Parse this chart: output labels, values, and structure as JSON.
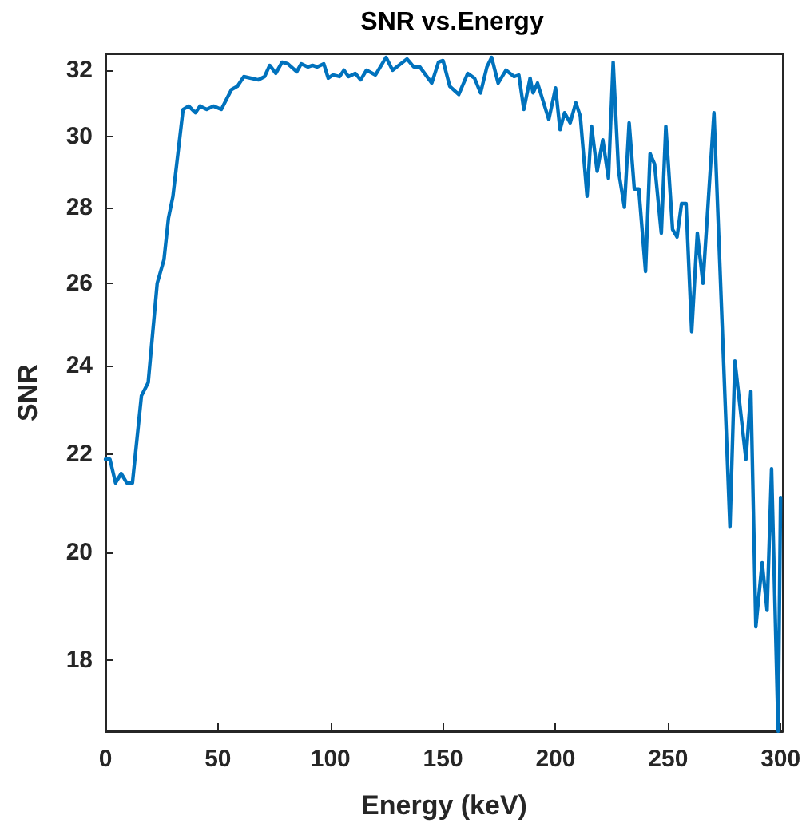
{
  "chart_data": {
    "type": "line",
    "title": "SNR vs.Energy",
    "xlabel": "Energy (keV)",
    "ylabel": "SNR",
    "log": true,
    "x": [
      0,
      2,
      4.5,
      7,
      9.5,
      12,
      16,
      19,
      23,
      26,
      28,
      30,
      34.5,
      37,
      40,
      42,
      45,
      48,
      51.5,
      56,
      58.6,
      61.5,
      68,
      70.7,
      73,
      75.7,
      78.5,
      81,
      85,
      87,
      90,
      92,
      94,
      97,
      99,
      101,
      104,
      106,
      108,
      111,
      113.4,
      116,
      120,
      124.7,
      127.6,
      134,
      137,
      139.7,
      145,
      148,
      150,
      153,
      157,
      161,
      164,
      166.7,
      169.5,
      171.6,
      174.5,
      178,
      181.6,
      183.7,
      185.9,
      188.7,
      190,
      192,
      197,
      200,
      202,
      204,
      206.5,
      209,
      211,
      214,
      216,
      218.5,
      221,
      223.5,
      225.6,
      228,
      230.6,
      232.7,
      235,
      237,
      240,
      242,
      244,
      247,
      249,
      252,
      254,
      256,
      258,
      260.5,
      263,
      265.5,
      270.4,
      277.5,
      279.7,
      284.6,
      286.8,
      289,
      291.8,
      294,
      296,
      298.9,
      300
    ],
    "series": [
      {
        "color": "#0072bd",
        "values": [
          21.9,
          21.9,
          21.4,
          21.6,
          21.4,
          21.4,
          23.3,
          23.6,
          26.0,
          26.6,
          27.7,
          28.3,
          30.8,
          30.9,
          30.7,
          30.9,
          30.8,
          30.9,
          30.8,
          31.4,
          31.5,
          31.8,
          31.7,
          31.8,
          32.15,
          31.9,
          32.25,
          32.2,
          31.95,
          32.2,
          32.1,
          32.15,
          32.1,
          32.2,
          31.75,
          31.85,
          31.8,
          32.0,
          31.8,
          31.9,
          31.7,
          32.0,
          31.85,
          32.4,
          32.0,
          32.35,
          32.1,
          32.1,
          31.6,
          32.25,
          32.3,
          31.5,
          31.25,
          31.9,
          31.75,
          31.3,
          32.1,
          32.4,
          31.6,
          32.0,
          31.8,
          31.85,
          30.8,
          31.75,
          31.3,
          31.6,
          30.5,
          31.45,
          30.2,
          30.7,
          30.4,
          31.0,
          30.6,
          28.3,
          30.3,
          29.0,
          29.9,
          28.8,
          32.25,
          29.0,
          28.0,
          30.4,
          28.5,
          28.5,
          26.3,
          29.5,
          29.2,
          27.3,
          30.3,
          27.4,
          27.2,
          28.1,
          28.1,
          24.8,
          27.3,
          26.0,
          30.7,
          20.5,
          24.1,
          21.9,
          23.4,
          18.6,
          19.8,
          18.9,
          21.7,
          16.8,
          21.1
        ]
      }
    ],
    "xlim": [
      0,
      301
    ],
    "xticks": [
      0,
      50,
      100,
      150,
      200,
      250,
      300
    ],
    "ylim": [
      16.8,
      32.5
    ],
    "yticks": [
      18,
      20,
      22,
      24,
      26,
      28,
      30,
      32
    ]
  }
}
